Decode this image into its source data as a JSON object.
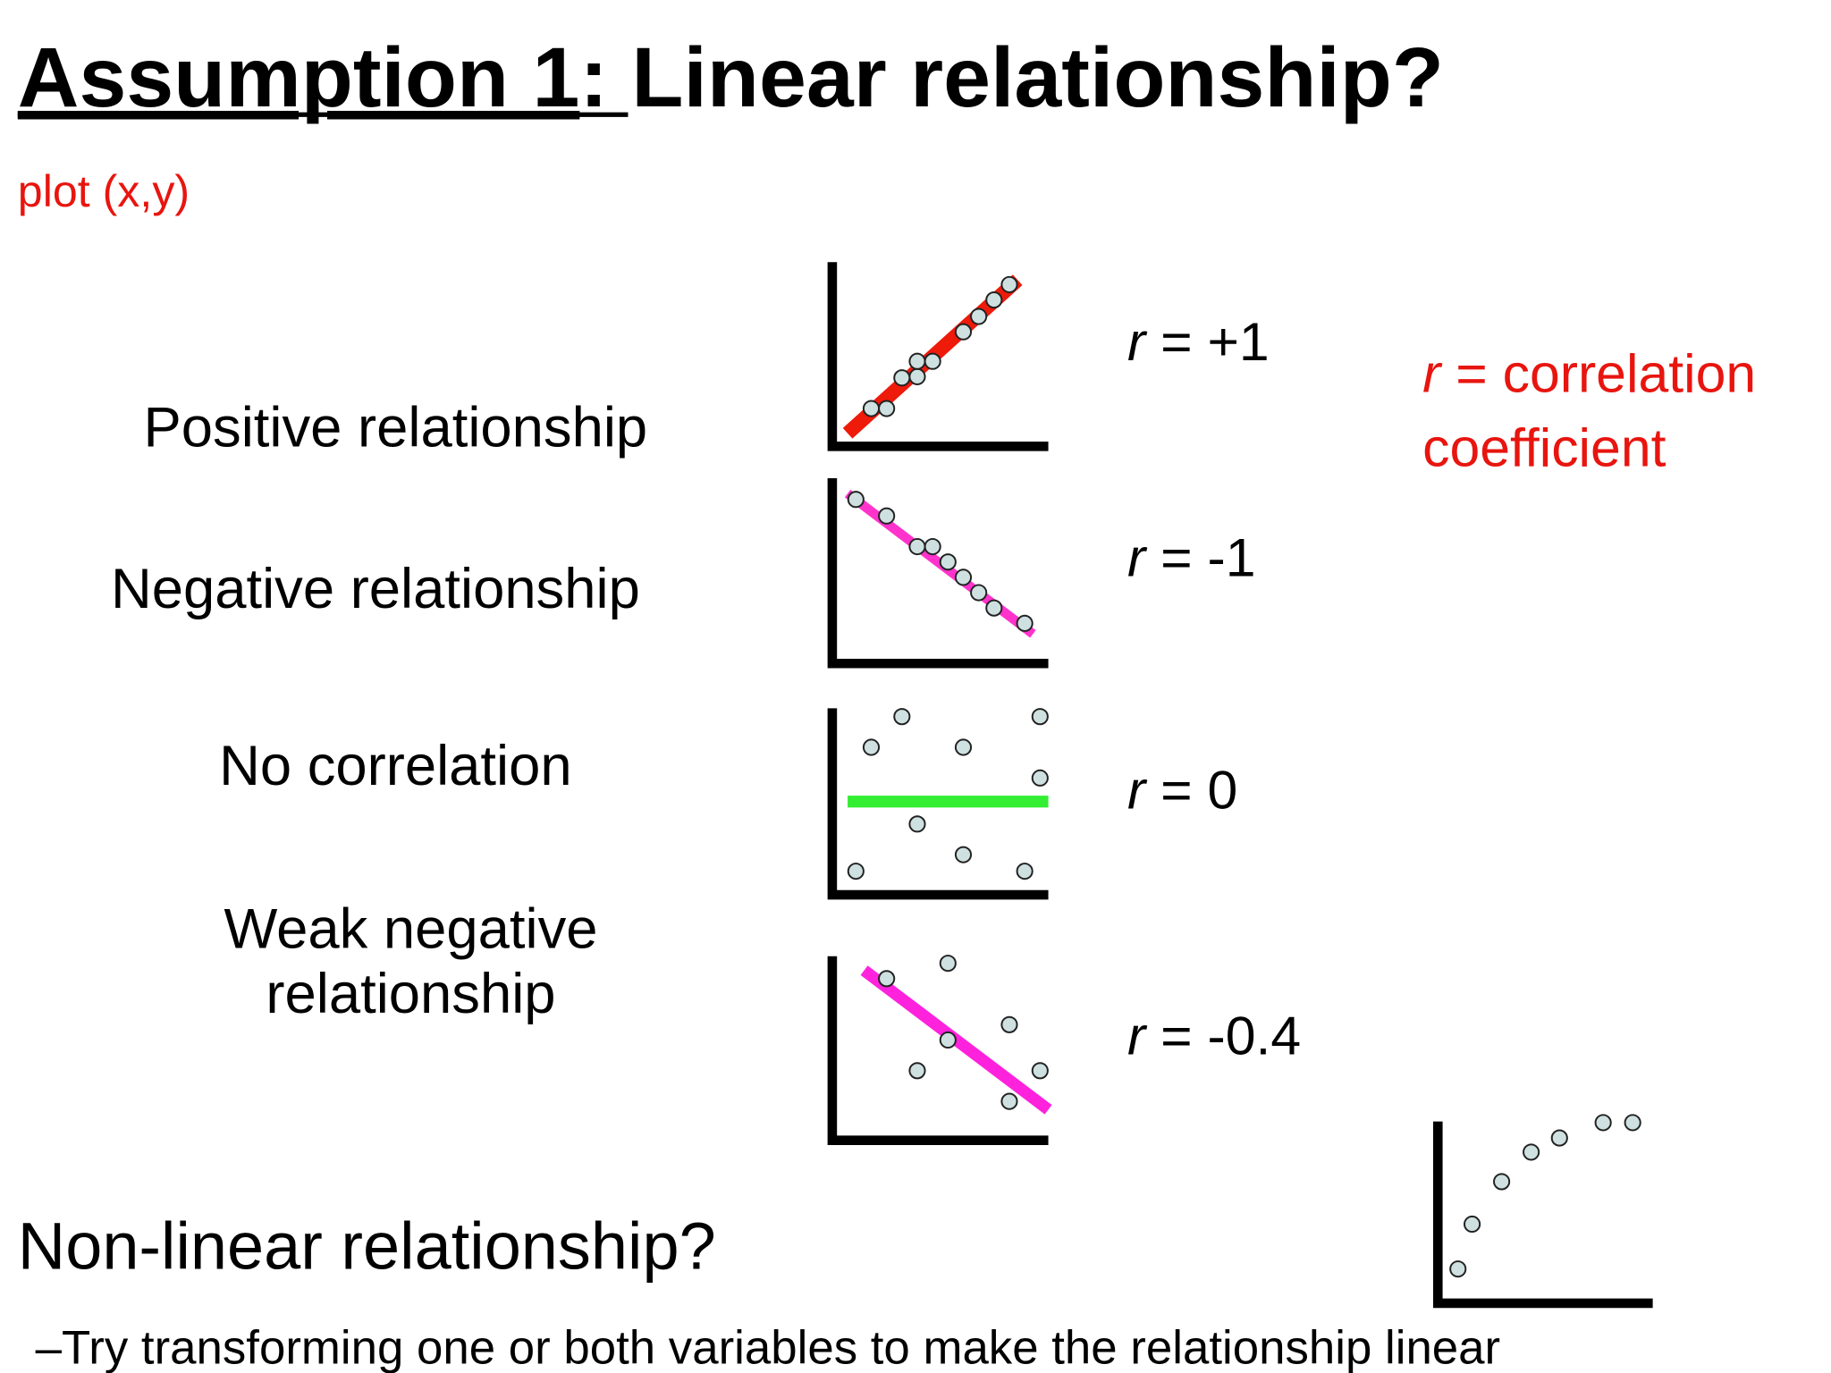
{
  "title": {
    "main": "Assumption 1",
    "rest": ": Linear relationship?"
  },
  "subtitle": "plot (x,y)",
  "rows": [
    {
      "label": [
        "Positive relationship"
      ],
      "symbol": "r",
      "value": " = +1"
    },
    {
      "label": [
        "Negative relationship"
      ],
      "symbol": "r",
      "value": " = -1"
    },
    {
      "label": [
        "No correlation"
      ],
      "symbol": "r",
      "value": " = 0"
    },
    {
      "label": [
        "Weak negative",
        "relationship"
      ],
      "symbol": "r",
      "value": " = -0.4"
    }
  ],
  "note": {
    "symbol": "r",
    "lines": [
      " = correlation",
      "coefficient"
    ]
  },
  "nonlinear": {
    "heading": "Non-linear relationship?",
    "tip": "–Try transforming one or both variables to make the relationship linear"
  }
}
